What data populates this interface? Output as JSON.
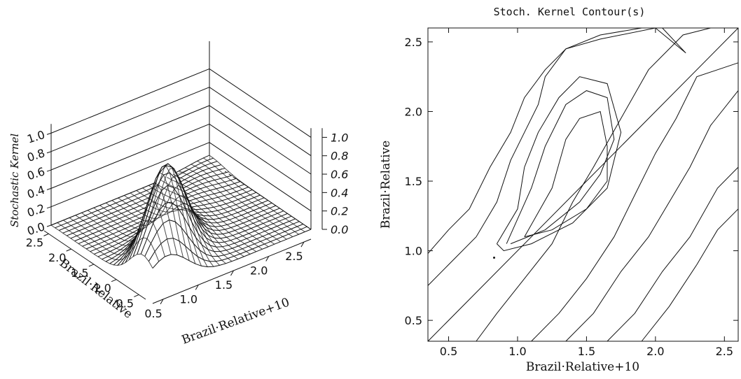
{
  "chart_data": [
    {
      "type": "surface",
      "xlabel": "Brazil·Relative+10",
      "ylabel": "Brazil·Relative",
      "zlabel": "Stochastic Kernel",
      "x_ticks": [
        "0.5",
        "1.0",
        "1.5",
        "2.0",
        "2.5"
      ],
      "y_ticks": [
        "0.5",
        "1.0",
        "1.5",
        "2.0",
        "2.5"
      ],
      "z_ticks_left": [
        "0.0",
        "0.2",
        "0.4",
        "0.6",
        "0.8",
        "1.0"
      ],
      "z_ticks_right": [
        "0.0",
        "0.2",
        "0.4",
        "0.6",
        "0.8",
        "1.0"
      ],
      "xlim": [
        0.35,
        2.6
      ],
      "ylim": [
        0.35,
        2.6
      ],
      "zlim": [
        0,
        1.1
      ],
      "peak": {
        "x": 0.9,
        "y": 0.85,
        "z": 1.0
      },
      "grid": true
    },
    {
      "type": "contour",
      "title": "Stoch. Kernel Contour(s)",
      "xlabel": "Brazil·Relative+10",
      "ylabel": "Brazil·Relative",
      "x_ticks": [
        "0.5",
        "1.0",
        "1.5",
        "2.0",
        "2.5"
      ],
      "y_ticks": [
        "0.5",
        "1.0",
        "1.5",
        "2.0",
        "2.5"
      ],
      "xlim": [
        0.35,
        2.6
      ],
      "ylim": [
        0.35,
        2.6
      ],
      "diagonal": [
        [
          0.35,
          0.35
        ],
        [
          2.6,
          2.6
        ]
      ],
      "contours": [
        [
          [
            0.35,
            0.75
          ],
          [
            0.5,
            0.9
          ],
          [
            0.7,
            1.1
          ],
          [
            0.85,
            1.35
          ],
          [
            0.95,
            1.65
          ],
          [
            1.05,
            1.85
          ],
          [
            1.15,
            2.05
          ],
          [
            1.2,
            2.25
          ],
          [
            1.35,
            2.45
          ],
          [
            1.6,
            2.55
          ],
          [
            1.9,
            2.6
          ]
        ],
        [
          [
            0.35,
            0.98
          ],
          [
            0.5,
            1.15
          ],
          [
            0.65,
            1.3
          ],
          [
            0.8,
            1.6
          ],
          [
            0.95,
            1.85
          ],
          [
            1.05,
            2.1
          ],
          [
            1.2,
            2.3
          ],
          [
            1.35,
            2.45
          ],
          [
            1.6,
            2.52
          ],
          [
            2.0,
            2.6
          ],
          [
            2.22,
            2.42
          ],
          [
            2.05,
            2.6
          ]
        ],
        [
          [
            0.7,
            0.35
          ],
          [
            0.85,
            0.55
          ],
          [
            1.05,
            0.8
          ],
          [
            1.25,
            1.05
          ],
          [
            1.4,
            1.35
          ],
          [
            1.55,
            1.6
          ],
          [
            1.75,
            1.95
          ],
          [
            1.95,
            2.3
          ],
          [
            2.2,
            2.55
          ],
          [
            2.4,
            2.6
          ]
        ],
        [
          [
            1.1,
            0.35
          ],
          [
            1.3,
            0.55
          ],
          [
            1.5,
            0.8
          ],
          [
            1.7,
            1.1
          ],
          [
            1.85,
            1.4
          ],
          [
            2.0,
            1.7
          ],
          [
            2.15,
            1.95
          ],
          [
            2.3,
            2.25
          ],
          [
            2.6,
            2.35
          ]
        ],
        [
          [
            1.35,
            0.35
          ],
          [
            1.55,
            0.55
          ],
          [
            1.75,
            0.85
          ],
          [
            1.95,
            1.1
          ],
          [
            2.1,
            1.35
          ],
          [
            2.25,
            1.6
          ],
          [
            2.4,
            1.9
          ],
          [
            2.6,
            2.15
          ]
        ],
        [
          [
            1.65,
            0.35
          ],
          [
            1.85,
            0.55
          ],
          [
            2.05,
            0.85
          ],
          [
            2.25,
            1.1
          ],
          [
            2.45,
            1.45
          ],
          [
            2.6,
            1.6
          ]
        ],
        [
          [
            1.9,
            0.35
          ],
          [
            2.1,
            0.6
          ],
          [
            2.3,
            0.9
          ],
          [
            2.45,
            1.15
          ],
          [
            2.6,
            1.3
          ]
        ],
        [
          [
            0.85,
            1.05
          ],
          [
            1.0,
            1.3
          ],
          [
            1.05,
            1.6
          ],
          [
            1.15,
            1.85
          ],
          [
            1.3,
            2.1
          ],
          [
            1.45,
            2.25
          ],
          [
            1.65,
            2.2
          ],
          [
            1.75,
            1.85
          ],
          [
            1.65,
            1.45
          ],
          [
            1.4,
            1.2
          ],
          [
            1.1,
            1.05
          ],
          [
            0.9,
            1.0
          ],
          [
            0.85,
            1.05
          ]
        ],
        [
          [
            0.92,
            1.05
          ],
          [
            1.1,
            1.45
          ],
          [
            1.2,
            1.75
          ],
          [
            1.35,
            2.05
          ],
          [
            1.5,
            2.15
          ],
          [
            1.65,
            2.1
          ],
          [
            1.7,
            1.8
          ],
          [
            1.6,
            1.55
          ],
          [
            1.45,
            1.35
          ],
          [
            1.2,
            1.15
          ],
          [
            0.95,
            1.05
          ]
        ],
        [
          [
            1.05,
            1.1
          ],
          [
            1.25,
            1.45
          ],
          [
            1.35,
            1.8
          ],
          [
            1.45,
            1.95
          ],
          [
            1.6,
            2.0
          ],
          [
            1.65,
            1.75
          ],
          [
            1.65,
            1.5
          ],
          [
            1.5,
            1.3
          ],
          [
            1.25,
            1.15
          ],
          [
            1.05,
            1.1
          ]
        ]
      ]
    }
  ]
}
